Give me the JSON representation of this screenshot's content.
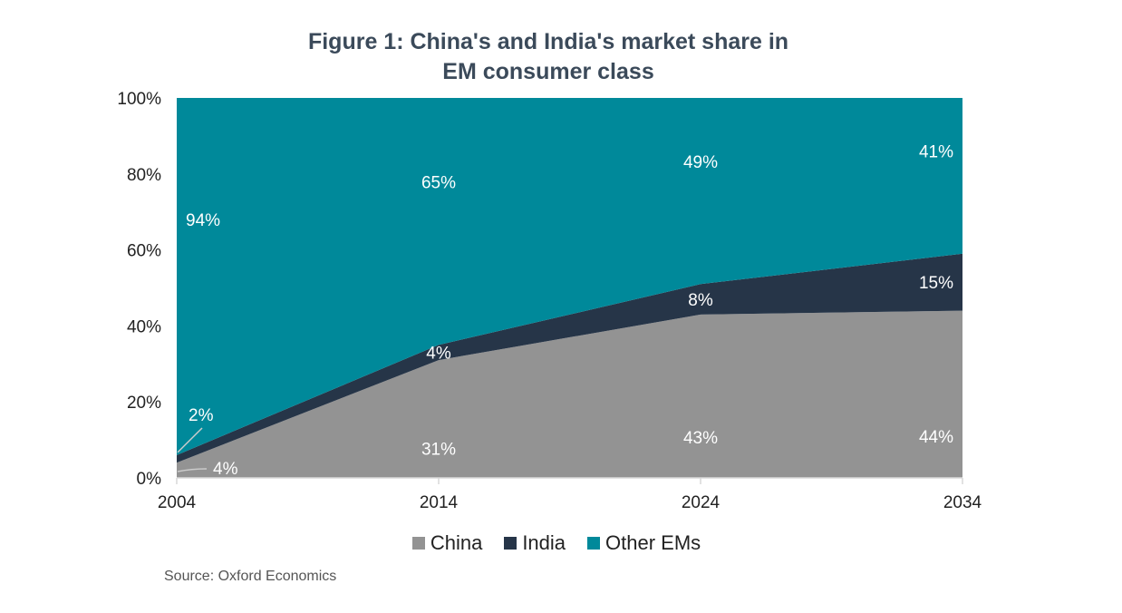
{
  "title_line1": "Figure 1: China's and India's market share in",
  "title_line2": "EM consumer class",
  "source": "Source: Oxford Economics",
  "colors": {
    "China": "#939393",
    "India": "#263548",
    "Other EMs": "#00899a"
  },
  "chart_data": {
    "type": "area",
    "stacked": true,
    "title": "Figure 1: China's and India's market share in EM consumer class",
    "x": [
      "2004",
      "2014",
      "2024",
      "2034"
    ],
    "ylim": [
      0,
      100
    ],
    "yticks": [
      "0%",
      "20%",
      "40%",
      "60%",
      "80%",
      "100%"
    ],
    "series": [
      {
        "name": "China",
        "values": [
          4,
          31,
          43,
          44
        ],
        "labels": [
          "4%",
          "31%",
          "43%",
          "44%"
        ]
      },
      {
        "name": "India",
        "values": [
          2,
          4,
          8,
          15
        ],
        "labels": [
          "2%",
          "4%",
          "8%",
          "15%"
        ]
      },
      {
        "name": "Other EMs",
        "values": [
          94,
          65,
          49,
          41
        ],
        "labels": [
          "94%",
          "65%",
          "49%",
          "41%"
        ]
      }
    ],
    "legend_position": "bottom"
  }
}
